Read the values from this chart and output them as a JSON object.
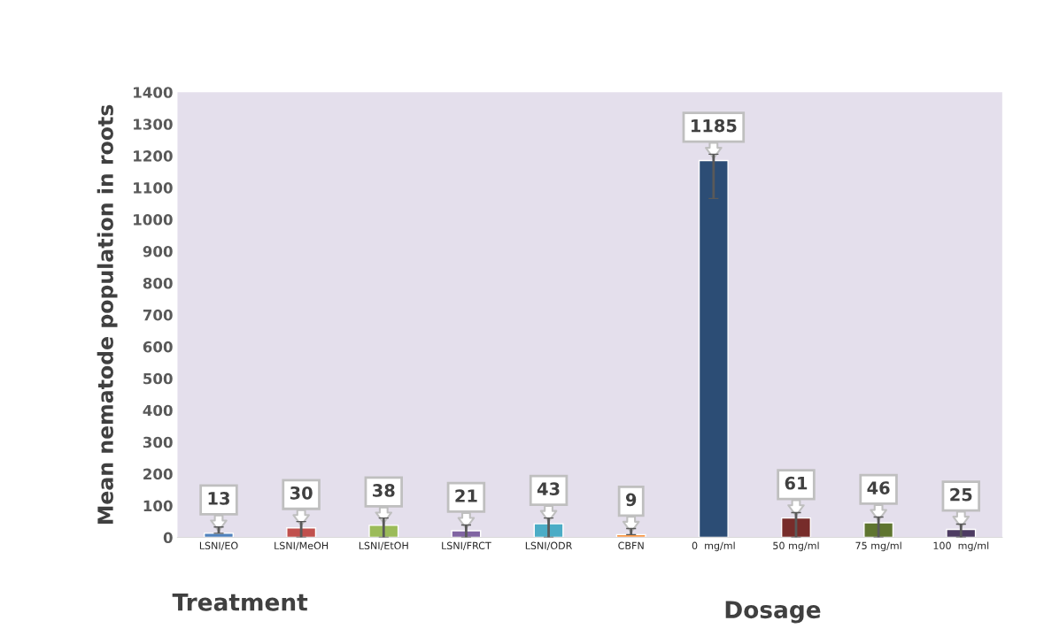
{
  "chart_data": {
    "type": "bar",
    "ylabel": "Mean nematode population in roots",
    "categories": [
      "LSNI/EO",
      "LSNI/MeOH",
      "LSNI/EtOH",
      "LSNI/FRCT",
      "LSNI/ODR",
      "CBFN",
      "0  mg/ml",
      "50 mg/ml",
      "75 mg/ml",
      "100  mg/ml"
    ],
    "values": [
      13,
      30,
      38,
      21,
      43,
      9,
      1185,
      61,
      46,
      25
    ],
    "colors": [
      "#4f81bd",
      "#c0504d",
      "#9bbb59",
      "#8064a2",
      "#4bacc6",
      "#f79646",
      "#2c4d75",
      "#772c2a",
      "#5f7530",
      "#4d3b62"
    ],
    "errors": [
      [
        13,
        33
      ],
      [
        0,
        50
      ],
      [
        0,
        61
      ],
      [
        0,
        39
      ],
      [
        0,
        61
      ],
      [
        9,
        28
      ],
      [
        1066,
        1205
      ],
      [
        0,
        78
      ],
      [
        0,
        64
      ],
      [
        0,
        42
      ]
    ],
    "ylim": [
      0,
      1400
    ],
    "yticks": [
      0,
      100,
      200,
      300,
      400,
      500,
      600,
      700,
      800,
      900,
      1000,
      1100,
      1200,
      1300,
      1400
    ],
    "grid": false,
    "data_labels": true,
    "annotations": [
      "Treatment",
      "Dosage"
    ]
  }
}
